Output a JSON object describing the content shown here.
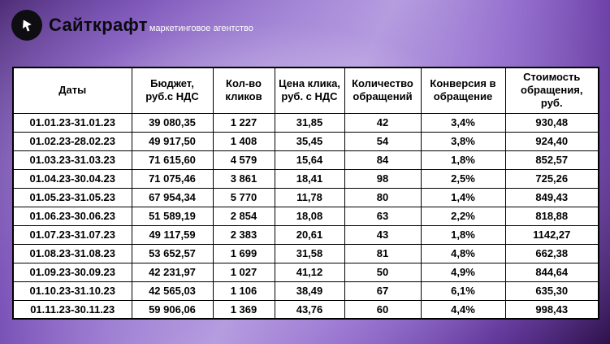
{
  "header": {
    "brand": "Сайткрафт",
    "tagline": "маркетинговое агентство"
  },
  "colors": {
    "background_dark_purple": "#2c0a52",
    "background_light_purple": "#b9a3e0",
    "table_background": "#ffffff",
    "table_border": "#000000",
    "text": "#000000",
    "logo_background": "#0d0d12",
    "logo_glyph": "#ffffff",
    "tagline_text": "#ffffff"
  },
  "chart_data": {
    "type": "table",
    "title": "",
    "columns": [
      "Даты",
      "Бюджет, руб.с НДС",
      "Кол-во кликов",
      "Цена клика, руб. с НДС",
      "Количество обращений",
      "Конверсия в обращение",
      "Стоимость обращения, руб."
    ],
    "rows": [
      [
        "01.01.23-31.01.23",
        "39 080,35",
        "1 227",
        "31,85",
        "42",
        "3,4%",
        "930,48"
      ],
      [
        "01.02.23-28.02.23",
        "49 917,50",
        "1 408",
        "35,45",
        "54",
        "3,8%",
        "924,40"
      ],
      [
        "01.03.23-31.03.23",
        "71 615,60",
        "4 579",
        "15,64",
        "84",
        "1,8%",
        "852,57"
      ],
      [
        "01.04.23-30.04.23",
        "71 075,46",
        "3 861",
        "18,41",
        "98",
        "2,5%",
        "725,26"
      ],
      [
        "01.05.23-31.05.23",
        "67 954,34",
        "5 770",
        "11,78",
        "80",
        "1,4%",
        "849,43"
      ],
      [
        "01.06.23-30.06.23",
        "51 589,19",
        "2 854",
        "18,08",
        "63",
        "2,2%",
        "818,88"
      ],
      [
        "01.07.23-31.07.23",
        "49 117,59",
        "2 383",
        "20,61",
        "43",
        "1,8%",
        "1142,27"
      ],
      [
        "01.08.23-31.08.23",
        "53 652,57",
        "1 699",
        "31,58",
        "81",
        "4,8%",
        "662,38"
      ],
      [
        "01.09.23-30.09.23",
        "42 231,97",
        "1 027",
        "41,12",
        "50",
        "4,9%",
        "844,64"
      ],
      [
        "01.10.23-31.10.23",
        "42 565,03",
        "1 106",
        "38,49",
        "67",
        "6,1%",
        "635,30"
      ],
      [
        "01.11.23-30.11.23",
        "59 906,06",
        "1 369",
        "43,76",
        "60",
        "4,4%",
        "998,43"
      ]
    ]
  }
}
